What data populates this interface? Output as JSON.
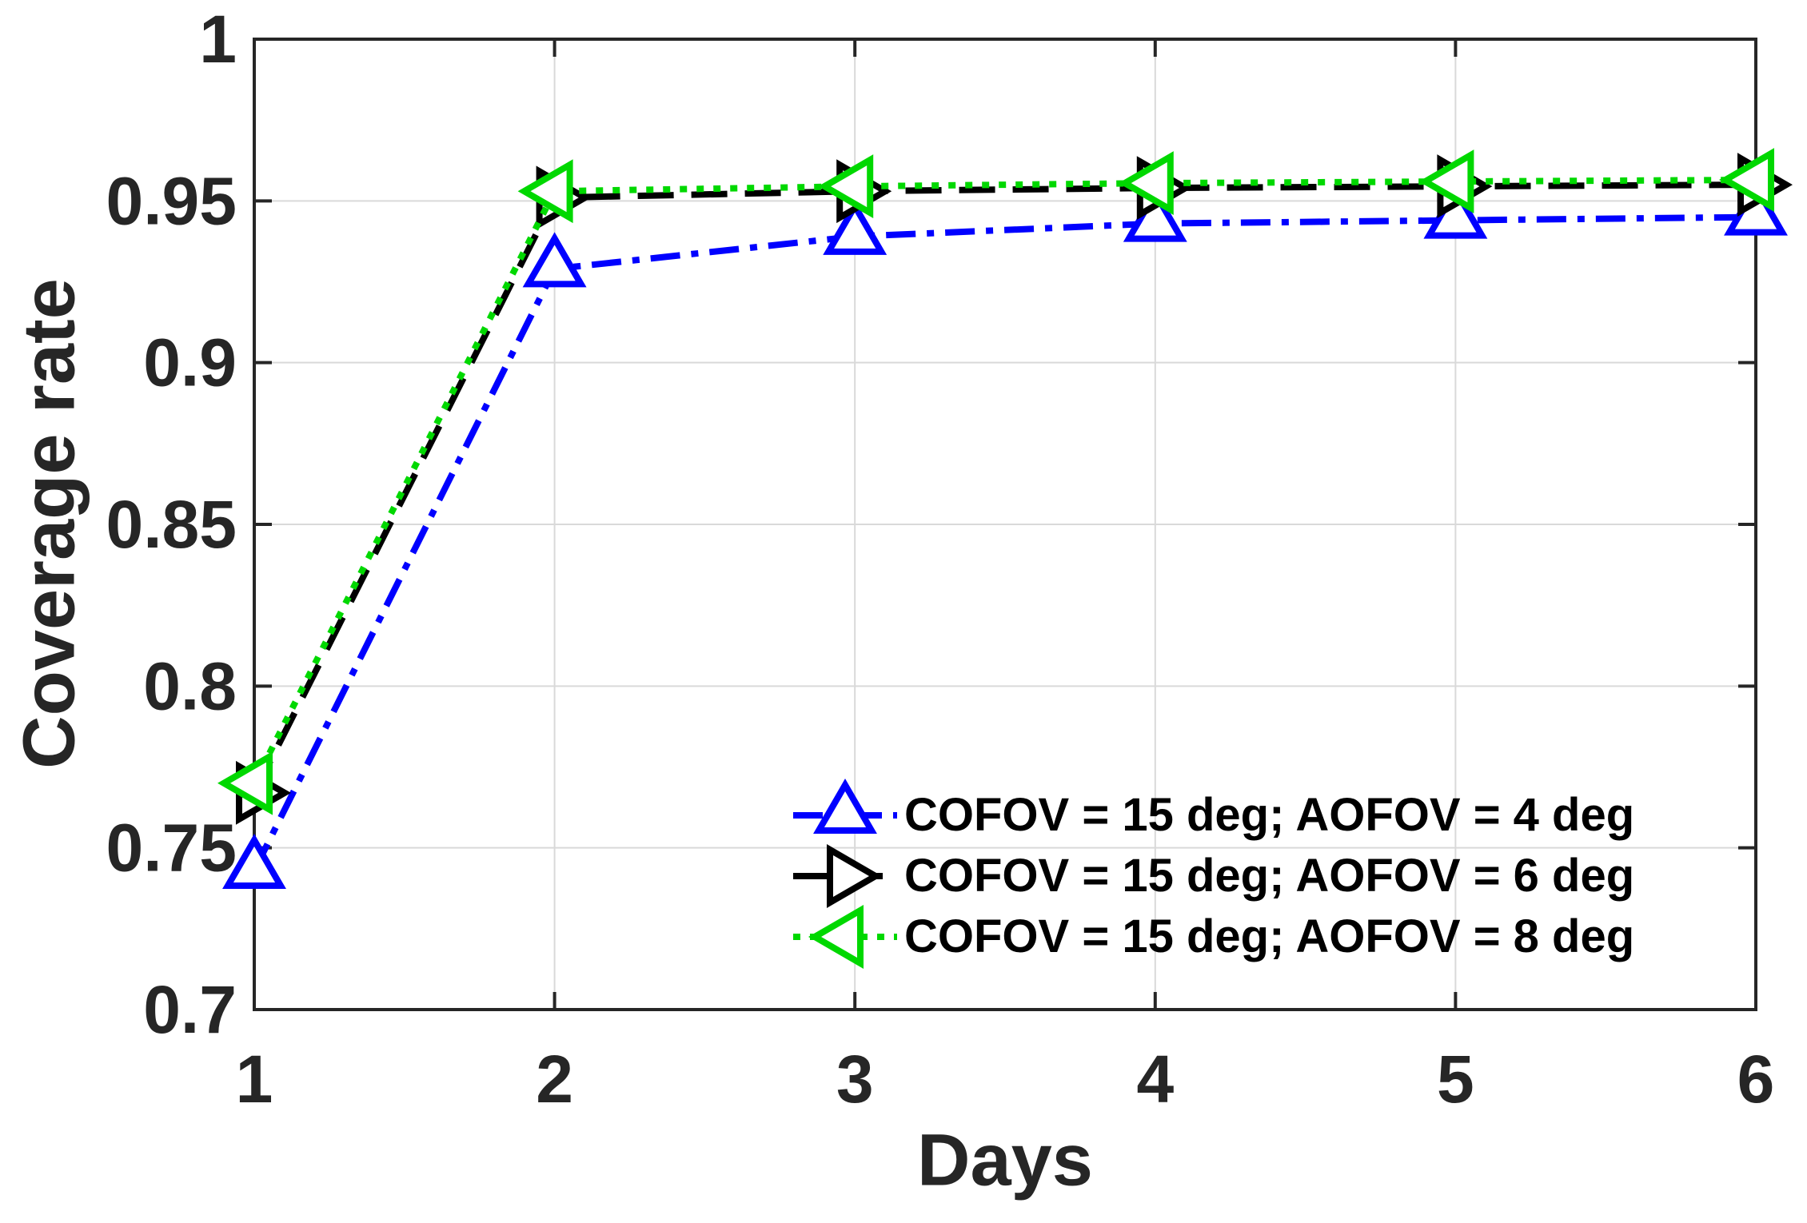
{
  "chart_data": {
    "type": "line",
    "title": "",
    "xlabel": "Days",
    "ylabel": "Coverage rate",
    "x": [
      1,
      2,
      3,
      4,
      5,
      6
    ],
    "xlim": [
      1,
      6
    ],
    "ylim": [
      0.7,
      1.0
    ],
    "x_tick_labels": [
      "1",
      "2",
      "3",
      "4",
      "5",
      "6"
    ],
    "y_ticks": [
      0.7,
      0.75,
      0.8,
      0.85,
      0.9,
      0.95,
      1.0
    ],
    "y_tick_labels": [
      "0.7",
      "0.75",
      "0.8",
      "0.85",
      "0.9",
      "0.95",
      "1"
    ],
    "grid": true,
    "legend_position": "lower right",
    "colors": {
      "grid": "#d9d9d9",
      "axis": "#262626",
      "tick_text": "#262626",
      "legend_text": "#000000",
      "marker_fill": "#ffffff"
    },
    "series": [
      {
        "name": "COFOV = 15 deg; AOFOV = 4 deg",
        "color": "#0000ff",
        "marker": "triangle-up",
        "linestyle": "dash-dot",
        "values": [
          0.743,
          0.929,
          0.939,
          0.943,
          0.944,
          0.945
        ]
      },
      {
        "name": "COFOV = 15 deg; AOFOV = 6 deg",
        "color": "#000000",
        "marker": "triangle-right",
        "linestyle": "dashed",
        "values": [
          0.767,
          0.951,
          0.953,
          0.954,
          0.9545,
          0.955
        ]
      },
      {
        "name": "COFOV = 15 deg; AOFOV = 8 deg",
        "color": "#00d800",
        "marker": "triangle-left",
        "linestyle": "dotted",
        "values": [
          0.77,
          0.953,
          0.9545,
          0.9555,
          0.956,
          0.9565
        ]
      }
    ]
  }
}
